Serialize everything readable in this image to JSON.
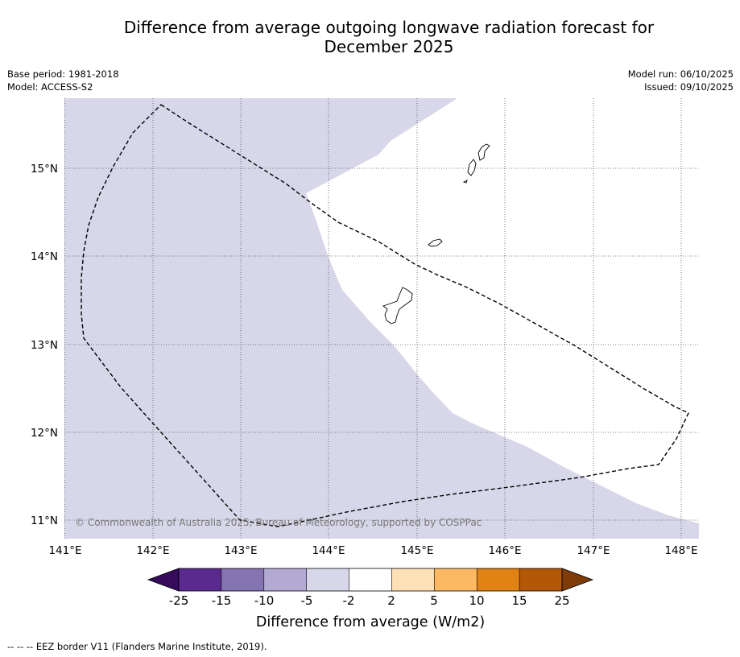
{
  "header": {
    "title_line1": "Difference from average outgoing longwave radiation forecast for",
    "title_line2": "December 2025",
    "base_period": "Base period: 1981-2018",
    "model": "Model: ACCESS-S2",
    "model_run": "Model run: 06/10/2025",
    "issued": "Issued: 09/10/2025"
  },
  "map": {
    "lon_labels": [
      "141°E",
      "142°E",
      "143°E",
      "144°E",
      "145°E",
      "146°E",
      "147°E",
      "148°E"
    ],
    "lat_labels": [
      "15°N",
      "14°N",
      "13°N",
      "12°N",
      "11°N"
    ],
    "copyright": "© Commonwealth of Australia 2025, Bureau of Meteorology, supported by COSPPac",
    "fill_color": "#d7d7e9"
  },
  "colorbar": {
    "title": "Difference from average (W/m2)",
    "tick_labels": [
      "-25",
      "-15",
      "-10",
      "-5",
      "-2",
      "2",
      "5",
      "10",
      "15",
      "25"
    ],
    "colors": [
      "#360b5c",
      "#5b2a8f",
      "#8474b1",
      "#b2aad3",
      "#d7d7e9",
      "#ffffff",
      "#fde0b6",
      "#fdb863",
      "#e08214",
      "#b35806",
      "#7f3b08"
    ]
  },
  "footer": {
    "note": "--  --  -- EEZ border V11 (Flanders Marine Institute, 2019)."
  }
}
